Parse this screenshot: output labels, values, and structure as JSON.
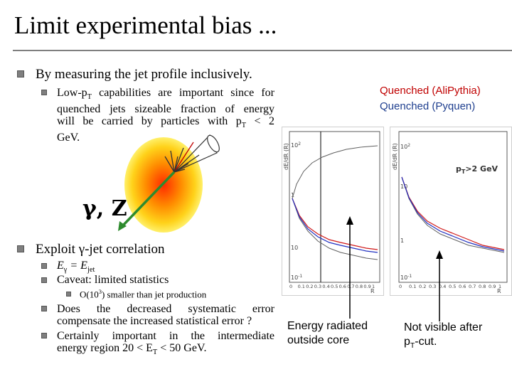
{
  "slide": {
    "title": "Limit experimental bias ...",
    "bullets": {
      "b1": "By measuring the jet profile inclusively.",
      "b1_sub": {
        "pre": "Low-p",
        "sub": "T",
        "line1_rest": " capabilities are important since for",
        "line2": "quenched jets sizeable fraction of energy",
        "line3_pre": "will be carried by particles with p",
        "line3_sub": "T",
        "line3_post": " < 2",
        "line4": "GeV."
      },
      "b2_pre": "Exploit ",
      "b2_gamma": "γ",
      "b2_post": "-jet correlation",
      "b2_subs": {
        "s1_e1": "E",
        "s1_g": "γ",
        "s1_eq": " = E",
        "s1_jet": "jet",
        "s2": "Caveat: limited statistics",
        "s2_sub_pre": "O(10",
        "s2_sub_sup": "3",
        "s2_sub_post": ") smaller than jet production",
        "s3_line1": "Does the decreased systematic error",
        "s3_line2": "compensate the increased statistical error ?",
        "s4_line1": "Certainly important in the intermediate",
        "s4_line2_pre": "energy region 20 < E",
        "s4_line2_sub": "T",
        "s4_line2_post": " < 50 GeV."
      }
    },
    "legend": {
      "quenched_alipythia": "Quenched (AliPythia)",
      "quenched_pyquen": "Quenched (Pyquen)"
    },
    "diagram": {
      "gamma_z_label": "γ, Z"
    },
    "plots": {
      "left_ylabel": "dE/dR (R)",
      "right_ylabel": "dE/dR (R)",
      "x_axis_label": "R",
      "x_ticks": [
        "0",
        "0.1",
        "0.2",
        "0.3",
        "0.4",
        "0.5",
        "0.6",
        "0.7",
        "0.8",
        "0.9",
        "1"
      ],
      "left_y_ticks": [
        "10",
        "1",
        "10"
      ],
      "left_y_ticks_sup": [
        "2",
        "",
        "-1"
      ],
      "right_y_ticks": [
        "10",
        "10",
        "1",
        "10"
      ],
      "right_y_ticks_sup": [
        "2",
        "",
        "",
        "-1"
      ],
      "right_cut_label_pre": "p",
      "right_cut_label_sub": "T",
      "right_cut_label_post": ">2 GeV"
    },
    "annotations": {
      "energy_radiated_line1": "Energy radiated",
      "energy_radiated_line2": "outside core",
      "not_visible_line1": "Not visible after",
      "not_visible_line2_pre": "p",
      "not_visible_line2_sub": "T",
      "not_visible_line2_post": "-cut."
    },
    "colors": {
      "rule": "#7f7f7f",
      "red_curve": "#d01818",
      "blue_curve": "#2030c0",
      "gray_curve": "#606060",
      "photon_arrow": "#2e8b2e"
    }
  }
}
